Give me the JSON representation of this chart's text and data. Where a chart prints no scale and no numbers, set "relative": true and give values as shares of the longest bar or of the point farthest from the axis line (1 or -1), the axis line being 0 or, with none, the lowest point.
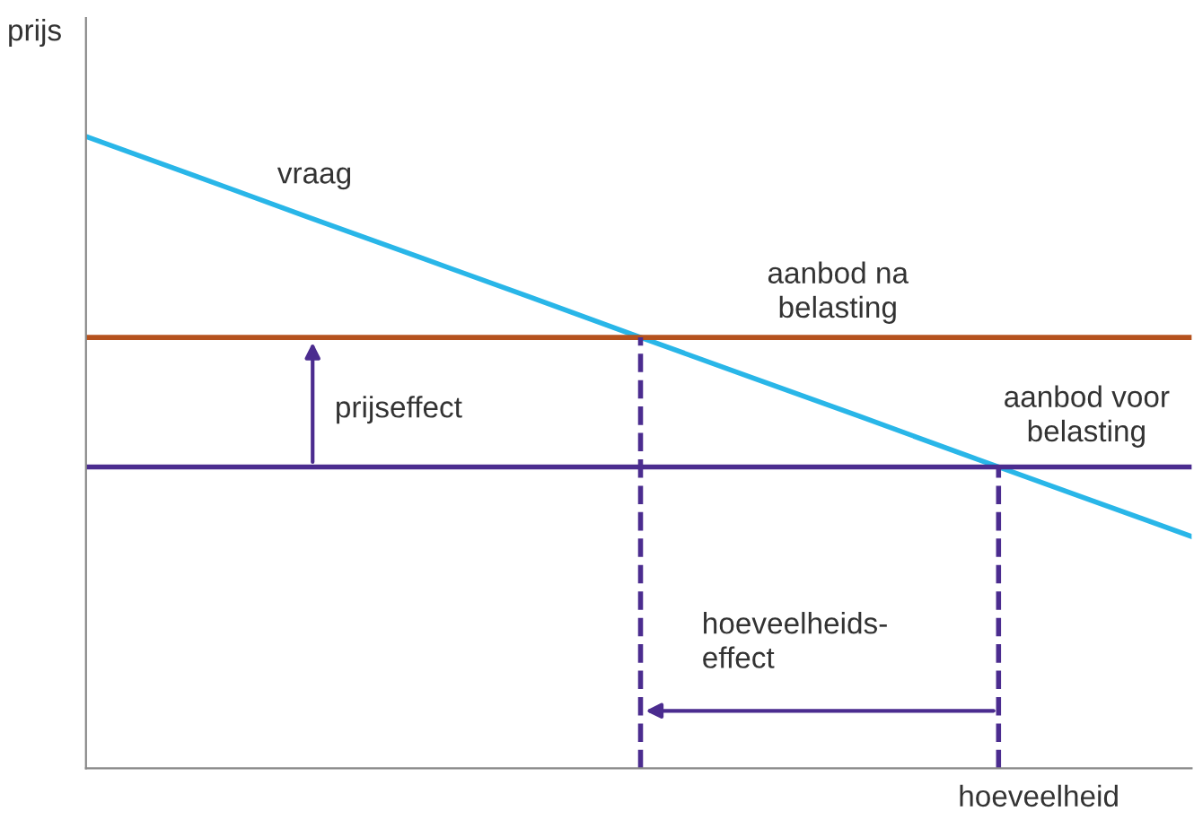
{
  "chart_data": {
    "type": "line",
    "relative": true,
    "xlabel": "hoeveelheid",
    "ylabel": "prijs",
    "categories": [
      null,
      null,
      null,
      null,
      null,
      null,
      null,
      null,
      null,
      null,
      null
    ],
    "series": [
      {
        "name": "vraag",
        "color": "#29b6e8",
        "values": [
          1.0,
          0.937,
          0.873,
          0.81,
          0.747,
          0.683,
          0.62,
          0.557,
          0.493,
          0.43,
          0.367
        ]
      },
      {
        "name": "aanbod na\nbelasting",
        "color": "#b5521e",
        "values": [
          0.682,
          0.682,
          0.682,
          0.682,
          0.682,
          0.682,
          0.682,
          0.682,
          0.682,
          0.682,
          0.682
        ]
      },
      {
        "name": "aanbod voor\nbelasting",
        "color": "#4b2c8f",
        "values": [
          0.477,
          0.477,
          0.477,
          0.477,
          0.477,
          0.477,
          0.477,
          0.477,
          0.477,
          0.477,
          0.477
        ]
      }
    ],
    "annotations": [
      "prijseffect",
      "hoeveelheids-\neffect"
    ],
    "marker": "none",
    "line_style": "solid"
  }
}
